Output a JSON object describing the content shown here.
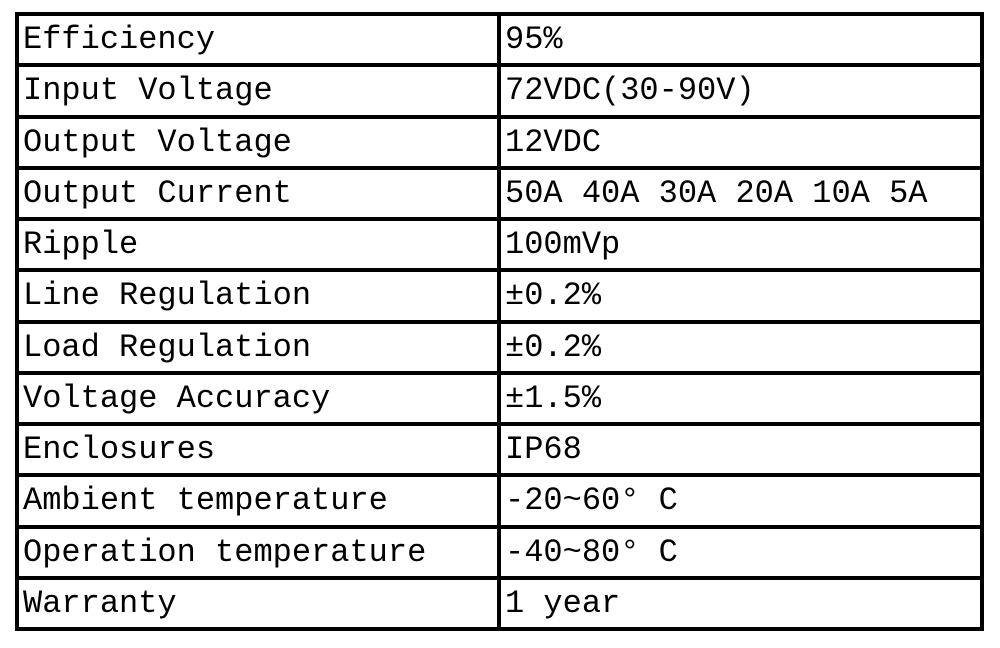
{
  "table": {
    "rows": [
      [
        "Efficiency",
        "95%"
      ],
      [
        "Input Voltage",
        "72VDC(30-90V)"
      ],
      [
        "Output Voltage",
        "12VDC"
      ],
      [
        "Output Current",
        "50A 40A 30A 20A 10A 5A"
      ],
      [
        "Ripple",
        "100mVp"
      ],
      [
        "Line Regulation",
        "±0.2%"
      ],
      [
        "Load Regulation",
        "±0.2%"
      ],
      [
        "Voltage Accuracy",
        "±1.5%"
      ],
      [
        "Enclosures",
        "IP68"
      ],
      [
        "Ambient temperature",
        "-20~60° C"
      ],
      [
        "Operation temperature",
        "-40~80° C"
      ],
      [
        "Warranty",
        "1 year"
      ]
    ]
  }
}
